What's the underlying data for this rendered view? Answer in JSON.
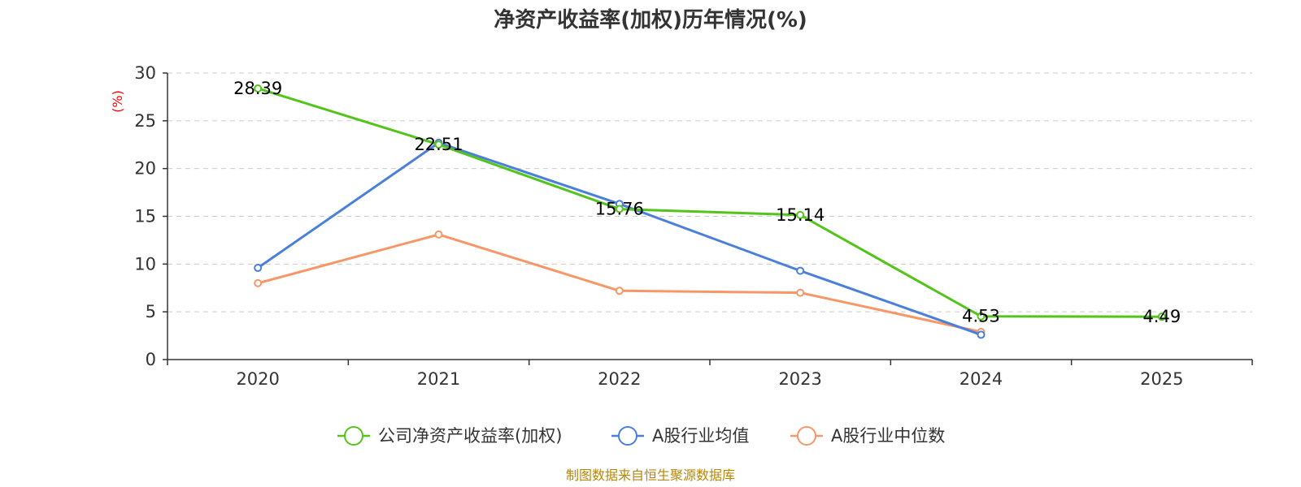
{
  "chart_data": {
    "type": "line",
    "title": "净资产收益率(加权)历年情况(%)",
    "xlabel": "",
    "ylabel": "(%)",
    "categories": [
      "2020",
      "2021",
      "2022",
      "2023",
      "2024",
      "2025"
    ],
    "ylim": [
      0,
      30
    ],
    "yticks": [
      0,
      5,
      10,
      15,
      20,
      25,
      30
    ],
    "grid": true,
    "legend_position": "bottom",
    "series": [
      {
        "name": "公司净资产收益率(加权)",
        "color": "#52c41a",
        "values": [
          28.39,
          22.51,
          15.76,
          15.14,
          4.53,
          4.49
        ],
        "labels": [
          "28.39",
          "22.51",
          "15.76",
          "15.14",
          "4.53",
          "4.49"
        ]
      },
      {
        "name": "A股行业均值",
        "color": "#4a7fdc",
        "values": [
          9.6,
          22.7,
          16.3,
          9.3,
          2.6,
          null
        ]
      },
      {
        "name": "A股行业中位数",
        "color": "#f79767",
        "values": [
          8.0,
          13.1,
          7.2,
          7.0,
          2.9,
          null
        ]
      }
    ],
    "source": "制图数据来自恒生聚源数据库",
    "source_color": "#b8860b",
    "ylabel_color": "#ff0000"
  }
}
